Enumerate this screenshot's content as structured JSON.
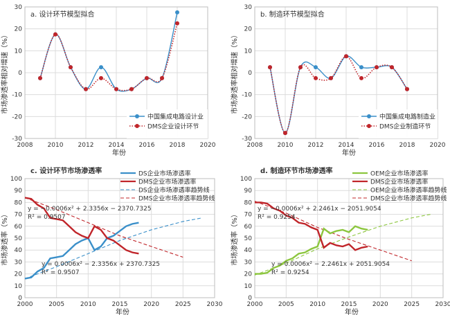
{
  "chart_data": [
    {
      "type": "line",
      "title": "a. 设计环节模型拟合",
      "xlabel": "年份",
      "ylabel": "市场渗透率相对增速（%）",
      "xlim": [
        2008,
        2020
      ],
      "ylim": [
        -30,
        30
      ],
      "xticks": [
        "2008",
        "2010",
        "2012",
        "2014",
        "2016",
        "2018",
        "2020"
      ],
      "yticks": [
        "-30",
        "-20",
        "-10",
        "0",
        "10",
        "20",
        "30"
      ],
      "legend": "bottom-right",
      "grid": true,
      "series": [
        {
          "name": "中国集成电路设计业",
          "color": "#3a8fc9",
          "style": "solid",
          "x": [
            2009,
            2010,
            2011,
            2012,
            2013,
            2014,
            2015,
            2016,
            2017,
            2018
          ],
          "y": [
            -2.5,
            17.5,
            2.5,
            -7.5,
            2.5,
            -7.5,
            -7.5,
            -2.5,
            -2.5,
            27.5
          ]
        },
        {
          "name": "DMS企业设计环节",
          "color": "#c0252a",
          "style": "dotted",
          "x": [
            2009,
            2010,
            2011,
            2012,
            2013,
            2014,
            2015,
            2016,
            2017,
            2018
          ],
          "y": [
            -2.5,
            17.5,
            2.5,
            -7.5,
            -2.5,
            -7.5,
            -7.5,
            -2.5,
            -2.5,
            22.5
          ]
        }
      ]
    },
    {
      "type": "line",
      "title": "b. 制造环节模型拟合",
      "xlabel": "年份",
      "ylabel": "市场渗透率相对增速（%）",
      "xlim": [
        2008,
        2020
      ],
      "ylim": [
        -30,
        30
      ],
      "xticks": [
        "2008",
        "2010",
        "2012",
        "2014",
        "2016",
        "2018",
        "2020"
      ],
      "yticks": [
        "-30",
        "-20",
        "-10",
        "0",
        "10",
        "20",
        "30"
      ],
      "legend": "bottom-right",
      "grid": true,
      "series": [
        {
          "name": "中国集成电路制造业",
          "color": "#3a8fc9",
          "style": "solid",
          "x": [
            2009,
            2010,
            2011,
            2012,
            2013,
            2014,
            2015,
            2016,
            2017,
            2018
          ],
          "y": [
            2.5,
            -27.5,
            2.5,
            2.5,
            -2.5,
            7.5,
            2.5,
            2.5,
            2.5,
            -7.5
          ]
        },
        {
          "name": "DMS企业制造环节",
          "color": "#c0252a",
          "style": "dotted",
          "x": [
            2009,
            2010,
            2011,
            2012,
            2013,
            2014,
            2015,
            2016,
            2017,
            2018
          ],
          "y": [
            2.5,
            -27.5,
            2.5,
            -2.5,
            -2.5,
            7.5,
            -2.5,
            2.5,
            2.5,
            -7.5
          ]
        }
      ]
    },
    {
      "type": "line",
      "title": "c. 设计环节市场渗透率",
      "xlabel": "年份",
      "ylabel": "市场渗透率（%）",
      "xlim": [
        2000,
        2030
      ],
      "ylim": [
        0,
        100
      ],
      "xticks": [
        "2000",
        "2005",
        "2010",
        "2015",
        "2020",
        "2025",
        "2030"
      ],
      "yticks": [
        "0",
        "10",
        "20",
        "30",
        "40",
        "50",
        "60",
        "70",
        "80",
        "90",
        "100"
      ],
      "legend": "top-right",
      "grid": true,
      "annotations": [
        {
          "line1": "y = −0.0006x² + 2.3356x − 2370.7325",
          "line2": "R² = 0.9507"
        },
        {
          "line1": "y = 0.0006x² − 2.3356x + 2370.7325",
          "line2": "R² = 0.9507"
        }
      ],
      "series": [
        {
          "name": "DS企业市场渗透率",
          "color": "#3a8fc9",
          "style": "solid",
          "width": 2.4,
          "x": [
            2000,
            2001,
            2002,
            2003,
            2004,
            2005,
            2006,
            2007,
            2008,
            2009,
            2010,
            2011,
            2012,
            2013,
            2014,
            2015,
            2016,
            2017,
            2018
          ],
          "y": [
            16,
            17,
            22,
            25,
            33,
            34,
            35,
            40,
            45,
            48,
            50,
            40,
            43,
            50,
            52,
            56,
            60,
            62,
            63
          ]
        },
        {
          "name": "DMS企业市场渗透率",
          "color": "#c0252a",
          "style": "solid",
          "width": 2.4,
          "x": [
            2000,
            2001,
            2002,
            2003,
            2004,
            2005,
            2006,
            2007,
            2008,
            2009,
            2010,
            2011,
            2012,
            2013,
            2014,
            2015,
            2016,
            2017,
            2018
          ],
          "y": [
            84,
            83,
            78,
            75,
            67,
            66,
            65,
            60,
            55,
            52,
            50,
            60,
            57,
            50,
            48,
            44,
            40,
            38,
            37
          ]
        },
        {
          "name": "DS企业市场渗透率趋势线",
          "color": "#3a8fc9",
          "style": "dashed",
          "width": 1.1,
          "x": [
            2000,
            2005,
            2010,
            2015,
            2020,
            2025,
            2028
          ],
          "y": [
            16,
            26,
            37,
            48,
            57,
            64,
            67
          ]
        },
        {
          "name": "DMS企业市场渗透率趋势线",
          "color": "#c0252a",
          "style": "dashed",
          "width": 1.1,
          "x": [
            2000,
            2005,
            2010,
            2015,
            2020,
            2025
          ],
          "y": [
            84,
            74,
            63,
            52,
            43,
            34
          ]
        }
      ]
    },
    {
      "type": "line",
      "title": "d. 制造环节市场渗透率",
      "xlabel": "年份",
      "ylabel": "市场渗透率（%）",
      "xlim": [
        2000,
        2030
      ],
      "ylim": [
        0,
        100
      ],
      "xticks": [
        "2000",
        "2005",
        "2010",
        "2015",
        "2020",
        "2025",
        "2030"
      ],
      "yticks": [
        "0",
        "10",
        "20",
        "30",
        "40",
        "50",
        "60",
        "70",
        "80",
        "90",
        "100"
      ],
      "legend": "top-right",
      "grid": true,
      "annotations": [
        {
          "line1": "y = −0.0006x² + 2.2461x − 2051.9054",
          "line2": "R² = 0.9254"
        },
        {
          "line1": "y = 0.0006x² − 2.2461x + 2051.9054",
          "line2": "R² = 0.9254"
        }
      ],
      "series": [
        {
          "name": "OEM企业市场渗透率",
          "color": "#8cc63e",
          "style": "solid",
          "width": 2.4,
          "x": [
            2000,
            2001,
            2002,
            2003,
            2004,
            2005,
            2006,
            2007,
            2008,
            2009,
            2010,
            2011,
            2012,
            2013,
            2014,
            2015,
            2016,
            2017,
            2018
          ],
          "y": [
            20,
            20,
            21,
            25,
            27,
            31,
            33,
            37,
            38,
            41,
            43,
            58,
            54,
            56,
            57,
            55,
            60,
            58,
            57
          ]
        },
        {
          "name": "DMS企业市场渗透率",
          "color": "#c0252a",
          "style": "solid",
          "width": 2.4,
          "x": [
            2000,
            2001,
            2002,
            2003,
            2004,
            2005,
            2006,
            2007,
            2008,
            2009,
            2010,
            2011,
            2012,
            2013,
            2014,
            2015,
            2016,
            2017,
            2018
          ],
          "y": [
            80,
            80,
            79,
            75,
            73,
            69,
            67,
            63,
            62,
            59,
            57,
            42,
            46,
            44,
            43,
            45,
            40,
            42,
            43
          ]
        },
        {
          "name": "OEM企业市场渗透率趋势线",
          "color": "#8cc63e",
          "style": "dashed",
          "width": 1.1,
          "x": [
            2000,
            2005,
            2010,
            2015,
            2020,
            2025,
            2028
          ],
          "y": [
            19,
            29,
            41,
            51,
            60,
            67,
            70
          ]
        },
        {
          "name": "DMS企业市场渗透率趋势线",
          "color": "#c0252a",
          "style": "dashed",
          "width": 1.1,
          "x": [
            2000,
            2005,
            2010,
            2015,
            2020,
            2025
          ],
          "y": [
            81,
            71,
            59,
            49,
            40,
            31
          ]
        }
      ]
    }
  ]
}
